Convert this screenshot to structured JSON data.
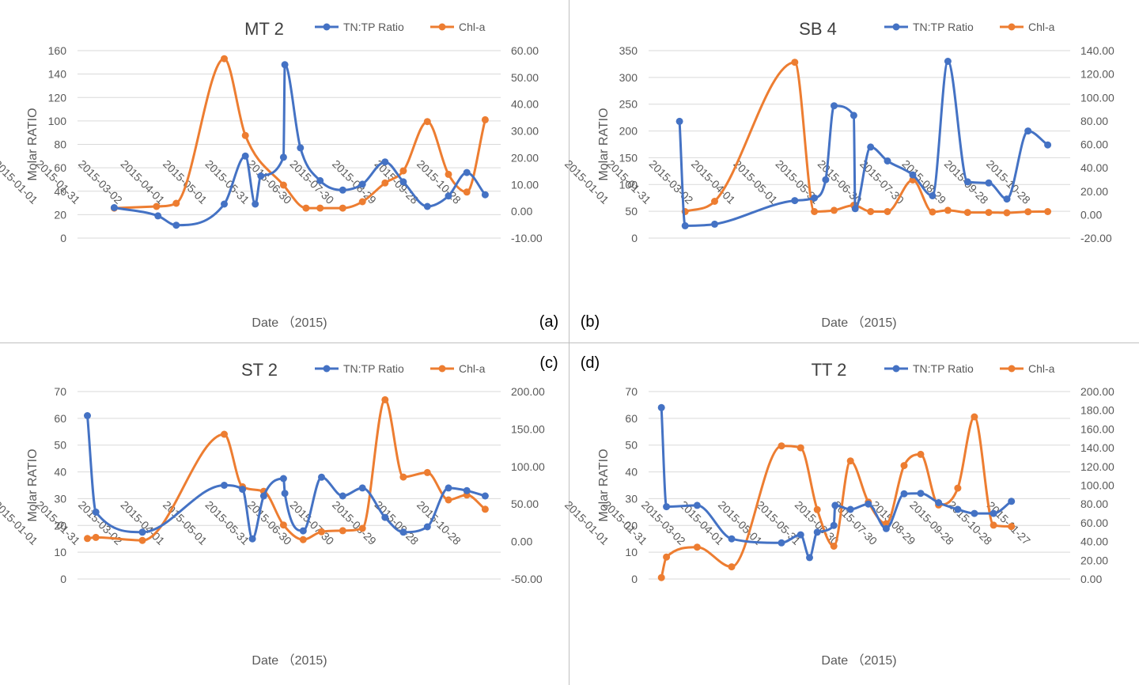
{
  "colors": {
    "tn_tp": "#4472C4",
    "chl": "#ED7D31",
    "axis_text": "#595959",
    "title_text": "#404040",
    "gridline": "#D9D9D9",
    "panel_border": "#BFBFBF"
  },
  "chart_data": [
    {
      "type": "line",
      "title": "MT 2",
      "panel_label": "(a)",
      "xlabel": "Date （2015)",
      "ylabel": "Molar RATIO",
      "x_ticks": [
        "2015-01-01",
        "2015-01-31",
        "2015-03-02",
        "2015-04-01",
        "2015-05-01",
        "2015-05-31",
        "2015-06-30",
        "2015-07-30",
        "2015-08-29",
        "2015-09-28",
        "2015-10-28"
      ],
      "x_range": [
        "2015-01-01",
        "2015-10-28"
      ],
      "ylim": [
        0,
        160
      ],
      "y_ticks": [
        "0",
        "20",
        "40",
        "60",
        "80",
        "100",
        "120",
        "140",
        "160"
      ],
      "y2lim": [
        -10,
        60
      ],
      "y2_ticks": [
        "-10.00",
        "0.00",
        "10.00",
        "20.00",
        "30.00",
        "40.00",
        "50.00",
        "60.00"
      ],
      "grid": true,
      "legend_position": "top",
      "series": [
        {
          "name": "TN:TP Ratio",
          "axis": "left",
          "points": [
            [
              "2015-01-27",
              26
            ],
            [
              "2015-02-27",
              19
            ],
            [
              "2015-03-12",
              11
            ],
            [
              "2015-04-15",
              29
            ],
            [
              "2015-04-30",
              70
            ],
            [
              "2015-05-07",
              29
            ],
            [
              "2015-05-11",
              53
            ],
            [
              "2015-05-27",
              69
            ],
            [
              "2015-05-28",
              148
            ],
            [
              "2015-06-08",
              77
            ],
            [
              "2015-06-22",
              49
            ],
            [
              "2015-07-08",
              41
            ],
            [
              "2015-07-22",
              46
            ],
            [
              "2015-08-07",
              65
            ],
            [
              "2015-08-20",
              48
            ],
            [
              "2015-09-06",
              27
            ],
            [
              "2015-09-21",
              36
            ],
            [
              "2015-10-04",
              56
            ],
            [
              "2015-10-17",
              37
            ]
          ]
        },
        {
          "name": "Chl-a",
          "axis": "right",
          "points": [
            [
              "2015-01-27",
              1.2
            ],
            [
              "2015-02-26",
              1.8
            ],
            [
              "2015-03-12",
              3.0
            ],
            [
              "2015-04-15",
              57.0
            ],
            [
              "2015-04-30",
              28.3
            ],
            [
              "2015-05-27",
              9.8
            ],
            [
              "2015-06-12",
              1.2
            ],
            [
              "2015-06-22",
              1.2
            ],
            [
              "2015-07-08",
              1.2
            ],
            [
              "2015-07-22",
              3.6
            ],
            [
              "2015-08-07",
              10.6
            ],
            [
              "2015-08-20",
              15.1
            ],
            [
              "2015-09-06",
              33.5
            ],
            [
              "2015-09-21",
              13.8
            ],
            [
              "2015-10-04",
              7.2
            ],
            [
              "2015-10-17",
              34.2
            ]
          ]
        }
      ]
    },
    {
      "type": "line",
      "title": "SB 4",
      "panel_label": "(b)",
      "xlabel": "Date （2015)",
      "ylabel": "Molar RATIO",
      "x_ticks": [
        "2015-01-01",
        "2015-01-31",
        "2015-03-02",
        "2015-04-01",
        "2015-05-01",
        "2015-05-31",
        "2015-06-30",
        "2015-07-30",
        "2015-08-29",
        "2015-09-28",
        "2015-10-28"
      ],
      "x_range": [
        "2015-01-01",
        "2015-10-28"
      ],
      "ylim": [
        0,
        350
      ],
      "y_ticks": [
        "0",
        "50",
        "100",
        "150",
        "200",
        "250",
        "300",
        "350"
      ],
      "y2lim": [
        -20,
        140
      ],
      "y2_ticks": [
        "-20.00",
        "0.00",
        "20.00",
        "40.00",
        "60.00",
        "80.00",
        "100.00",
        "120.00",
        "140.00"
      ],
      "grid": true,
      "legend_position": "top",
      "series": [
        {
          "name": "TN:TP Ratio",
          "axis": "left",
          "points": [
            [
              "2015-01-23",
              218
            ],
            [
              "2015-01-27",
              23
            ],
            [
              "2015-02-17",
              26
            ],
            [
              "2015-04-15",
              70
            ],
            [
              "2015-04-29",
              75
            ],
            [
              "2015-05-07",
              109
            ],
            [
              "2015-05-13",
              247
            ],
            [
              "2015-05-27",
              229
            ],
            [
              "2015-05-28",
              55
            ],
            [
              "2015-06-08",
              170
            ],
            [
              "2015-06-20",
              144
            ],
            [
              "2015-07-08",
              118
            ],
            [
              "2015-07-22",
              79
            ],
            [
              "2015-08-02",
              330
            ],
            [
              "2015-08-16",
              105
            ],
            [
              "2015-08-31",
              103
            ],
            [
              "2015-09-13",
              73
            ],
            [
              "2015-09-28",
              200
            ],
            [
              "2015-10-12",
              174
            ]
          ]
        },
        {
          "name": "Chl-a",
          "axis": "right",
          "points": [
            [
              "2015-01-27",
              2.6
            ],
            [
              "2015-02-17",
              11.4
            ],
            [
              "2015-04-15",
              130.1
            ],
            [
              "2015-04-29",
              2.6
            ],
            [
              "2015-05-13",
              3.7
            ],
            [
              "2015-05-27",
              8.0
            ],
            [
              "2015-06-08",
              2.6
            ],
            [
              "2015-06-20",
              2.6
            ],
            [
              "2015-07-08",
              29.6
            ],
            [
              "2015-07-22",
              2.3
            ],
            [
              "2015-08-02",
              3.7
            ],
            [
              "2015-08-16",
              1.9
            ],
            [
              "2015-08-31",
              1.9
            ],
            [
              "2015-09-13",
              1.6
            ],
            [
              "2015-09-28",
              2.5
            ],
            [
              "2015-10-12",
              2.6
            ]
          ]
        }
      ]
    },
    {
      "type": "line",
      "title": "ST 2",
      "panel_label": "(c)",
      "xlabel": "Date （2015)",
      "ylabel": "Molar RATIO",
      "x_ticks": [
        "2015-01-01",
        "2015-01-31",
        "2015-03-02",
        "2015-04-01",
        "2015-05-01",
        "2015-05-31",
        "2015-06-30",
        "2015-07-30",
        "2015-08-29",
        "2015-09-28",
        "2015-10-28"
      ],
      "x_range": [
        "2015-01-01",
        "2015-10-28"
      ],
      "ylim": [
        0,
        70
      ],
      "y_ticks": [
        "0",
        "10",
        "20",
        "30",
        "40",
        "50",
        "60",
        "70"
      ],
      "y2lim": [
        -50,
        200
      ],
      "y2_ticks": [
        "-50.00",
        "0.00",
        "50.00",
        "100.00",
        "150.00",
        "200.00"
      ],
      "grid": true,
      "legend_position": "top",
      "series": [
        {
          "name": "TN:TP Ratio",
          "axis": "left",
          "points": [
            [
              "2015-01-08",
              61
            ],
            [
              "2015-01-14",
              25
            ],
            [
              "2015-02-16",
              17.5
            ],
            [
              "2015-04-15",
              35
            ],
            [
              "2015-04-28",
              33.5
            ],
            [
              "2015-05-05",
              15
            ],
            [
              "2015-05-13",
              31
            ],
            [
              "2015-05-27",
              37.5
            ],
            [
              "2015-05-28",
              32
            ],
            [
              "2015-06-10",
              18
            ],
            [
              "2015-06-23",
              38
            ],
            [
              "2015-07-08",
              31
            ],
            [
              "2015-07-22",
              34
            ],
            [
              "2015-08-07",
              23
            ],
            [
              "2015-08-20",
              17.5
            ],
            [
              "2015-09-06",
              19.5
            ],
            [
              "2015-09-21",
              34
            ],
            [
              "2015-10-04",
              33
            ],
            [
              "2015-10-17",
              31
            ]
          ]
        },
        {
          "name": "Chl-a",
          "axis": "right",
          "points": [
            [
              "2015-01-08",
              4
            ],
            [
              "2015-01-14",
              5.5
            ],
            [
              "2015-02-16",
              1.5
            ],
            [
              "2015-04-15",
              143
            ],
            [
              "2015-04-28",
              73
            ],
            [
              "2015-05-13",
              67
            ],
            [
              "2015-05-27",
              22
            ],
            [
              "2015-06-10",
              2.5
            ],
            [
              "2015-06-23",
              13
            ],
            [
              "2015-07-08",
              14.5
            ],
            [
              "2015-07-22",
              17.5
            ],
            [
              "2015-08-07",
              189
            ],
            [
              "2015-08-20",
              86
            ],
            [
              "2015-09-06",
              92
            ],
            [
              "2015-09-21",
              55.5
            ],
            [
              "2015-10-04",
              62
            ],
            [
              "2015-10-17",
              43
            ]
          ]
        }
      ]
    },
    {
      "type": "line",
      "title": "TT 2",
      "panel_label": "(d)",
      "xlabel": "Date （2015)",
      "ylabel": "Molar RATIO",
      "x_ticks": [
        "2015-01-01",
        "2015-01-31",
        "2015-03-02",
        "2015-04-01",
        "2015-05-01",
        "2015-05-31",
        "2015-06-30",
        "2015-07-30",
        "2015-08-29",
        "2015-09-28",
        "2015-10-28",
        "2015-11-27"
      ],
      "x_range": [
        "2015-01-01",
        "2015-11-27"
      ],
      "ylim": [
        0,
        70
      ],
      "y_ticks": [
        "0",
        "10",
        "20",
        "30",
        "40",
        "50",
        "60",
        "70"
      ],
      "y2lim": [
        0,
        200
      ],
      "y2_ticks": [
        "0.00",
        "20.00",
        "40.00",
        "60.00",
        "80.00",
        "100.00",
        "120.00",
        "140.00",
        "160.00",
        "180.00",
        "200.00"
      ],
      "grid": true,
      "legend_position": "top",
      "series": [
        {
          "name": "TN:TP Ratio",
          "axis": "left",
          "points": [
            [
              "2015-01-11",
              64
            ],
            [
              "2015-01-15",
              27
            ],
            [
              "2015-02-08",
              27.5
            ],
            [
              "2015-03-07",
              15
            ],
            [
              "2015-04-15",
              13.5
            ],
            [
              "2015-04-30",
              16.5
            ],
            [
              "2015-05-07",
              8
            ],
            [
              "2015-05-13",
              17.5
            ],
            [
              "2015-05-26",
              20
            ],
            [
              "2015-05-27",
              27.5
            ],
            [
              "2015-06-08",
              26
            ],
            [
              "2015-06-22",
              28
            ],
            [
              "2015-07-06",
              18.8
            ],
            [
              "2015-07-20",
              31.8
            ],
            [
              "2015-08-02",
              32
            ],
            [
              "2015-08-16",
              28.5
            ],
            [
              "2015-08-31",
              26
            ],
            [
              "2015-09-13",
              24.5
            ],
            [
              "2015-09-28",
              24.5
            ],
            [
              "2015-10-12",
              29
            ]
          ]
        },
        {
          "name": "Chl-a",
          "axis": "right",
          "points": [
            [
              "2015-01-11",
              1.5
            ],
            [
              "2015-01-15",
              23.5
            ],
            [
              "2015-02-08",
              34
            ],
            [
              "2015-03-07",
              13
            ],
            [
              "2015-04-15",
              142
            ],
            [
              "2015-04-30",
              140
            ],
            [
              "2015-05-13",
              74
            ],
            [
              "2015-05-26",
              35
            ],
            [
              "2015-06-08",
              126
            ],
            [
              "2015-06-22",
              82
            ],
            [
              "2015-07-06",
              59
            ],
            [
              "2015-07-20",
              121
            ],
            [
              "2015-08-02",
              133
            ],
            [
              "2015-08-16",
              79
            ],
            [
              "2015-08-31",
              97
            ],
            [
              "2015-09-13",
              173
            ],
            [
              "2015-09-28",
              57.5
            ],
            [
              "2015-10-12",
              56
            ]
          ]
        }
      ]
    }
  ]
}
